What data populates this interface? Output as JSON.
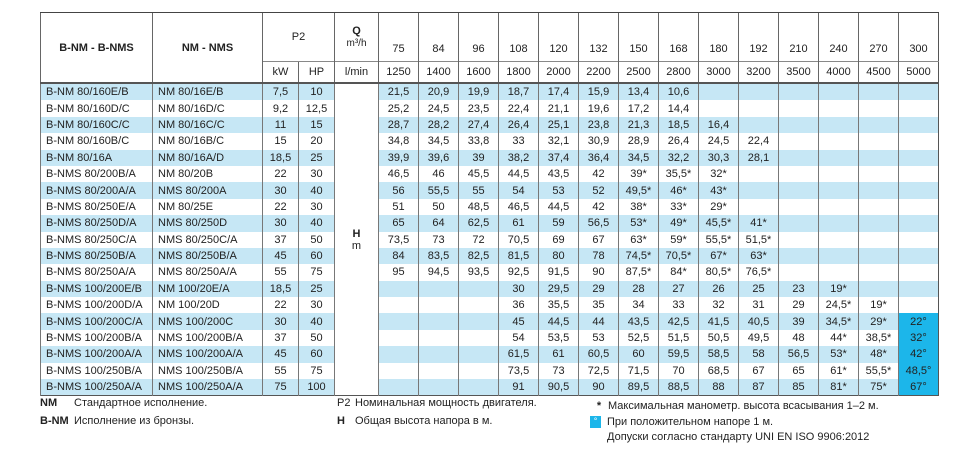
{
  "header": {
    "col_bnm": "B-NM - B-NMS",
    "col_nm": "NM - NMS",
    "p2": "P2",
    "kw": "kW",
    "hp": "HP",
    "q": "Q",
    "q_unit_m3h": "m³/h",
    "q_unit_lmin": "l/min",
    "h": "H",
    "h_unit": "m",
    "q_m3h": [
      "75",
      "84",
      "96",
      "108",
      "120",
      "132",
      "150",
      "168",
      "180",
      "192",
      "210",
      "240",
      "270",
      "300"
    ],
    "q_lmin": [
      "1250",
      "1400",
      "1600",
      "1800",
      "2000",
      "2200",
      "2500",
      "2800",
      "3000",
      "3200",
      "3500",
      "4000",
      "4500",
      "5000"
    ]
  },
  "rows": [
    {
      "bnm": "B-NM 80/160E/B",
      "nm": "NM 80/16E/B",
      "kw": "7,5",
      "hp": "10",
      "h": [
        "21,5",
        "20,9",
        "19,9",
        "18,7",
        "17,4",
        "15,9",
        "13,4",
        "10,6",
        "",
        "",
        "",
        "",
        "",
        ""
      ]
    },
    {
      "bnm": "B-NM 80/160D/C",
      "nm": "NM 80/16D/C",
      "kw": "9,2",
      "hp": "12,5",
      "h": [
        "25,2",
        "24,5",
        "23,5",
        "22,4",
        "21,1",
        "19,6",
        "17,2",
        "14,4",
        "",
        "",
        "",
        "",
        "",
        ""
      ]
    },
    {
      "bnm": "B-NM 80/160C/C",
      "nm": "NM 80/16C/C",
      "kw": "11",
      "hp": "15",
      "h": [
        "28,7",
        "28,2",
        "27,4",
        "26,4",
        "25,1",
        "23,8",
        "21,3",
        "18,5",
        "16,4",
        "",
        "",
        "",
        "",
        ""
      ]
    },
    {
      "bnm": "B-NM 80/160B/C",
      "nm": "NM 80/16B/C",
      "kw": "15",
      "hp": "20",
      "h": [
        "34,8",
        "34,5",
        "33,8",
        "33",
        "32,1",
        "30,9",
        "28,9",
        "26,4",
        "24,5",
        "22,4",
        "",
        "",
        "",
        ""
      ]
    },
    {
      "bnm": "B-NM 80/16A",
      "nm": "NM 80/16A/D",
      "kw": "18,5",
      "hp": "25",
      "h": [
        "39,9",
        "39,6",
        "39",
        "38,2",
        "37,4",
        "36,4",
        "34,5",
        "32,2",
        "30,3",
        "28,1",
        "",
        "",
        "",
        ""
      ]
    },
    {
      "bnm": "B-NMS 80/200B/A",
      "nm": "NM 80/20B",
      "kw": "22",
      "hp": "30",
      "h": [
        "46,5",
        "46",
        "45,5",
        "44,5",
        "43,5",
        "42",
        "39*",
        "35,5*",
        "32*",
        "",
        "",
        "",
        "",
        ""
      ]
    },
    {
      "bnm": "B-NMS 80/200A/A",
      "nm": "NMS 80/200A",
      "kw": "30",
      "hp": "40",
      "h": [
        "56",
        "55,5",
        "55",
        "54",
        "53",
        "52",
        "49,5*",
        "46*",
        "43*",
        "",
        "",
        "",
        "",
        ""
      ]
    },
    {
      "bnm": "B-NMS 80/250E/A",
      "nm": "NM 80/25E",
      "kw": "22",
      "hp": "30",
      "h": [
        "51",
        "50",
        "48,5",
        "46,5",
        "44,5",
        "42",
        "38*",
        "33*",
        "29*",
        "",
        "",
        "",
        "",
        ""
      ]
    },
    {
      "bnm": "B-NMS 80/250D/A",
      "nm": "NMS 80/250D",
      "kw": "30",
      "hp": "40",
      "h": [
        "65",
        "64",
        "62,5",
        "61",
        "59",
        "56,5",
        "53*",
        "49*",
        "45,5*",
        "41*",
        "",
        "",
        "",
        ""
      ]
    },
    {
      "bnm": "B-NMS 80/250C/A",
      "nm": "NMS 80/250C/A",
      "kw": "37",
      "hp": "50",
      "h": [
        "73,5",
        "73",
        "72",
        "70,5",
        "69",
        "67",
        "63*",
        "59*",
        "55,5*",
        "51,5*",
        "",
        "",
        "",
        ""
      ]
    },
    {
      "bnm": "B-NMS 80/250B/A",
      "nm": "NMS 80/250B/A",
      "kw": "45",
      "hp": "60",
      "h": [
        "84",
        "83,5",
        "82,5",
        "81,5",
        "80",
        "78",
        "74,5*",
        "70,5*",
        "67*",
        "63*",
        "",
        "",
        "",
        ""
      ]
    },
    {
      "bnm": "B-NMS 80/250A/A",
      "nm": "NMS 80/250A/A",
      "kw": "55",
      "hp": "75",
      "h": [
        "95",
        "94,5",
        "93,5",
        "92,5",
        "91,5",
        "90",
        "87,5*",
        "84*",
        "80,5*",
        "76,5*",
        "",
        "",
        "",
        ""
      ]
    },
    {
      "bnm": "B-NMS 100/200E/B",
      "nm": "NM 100/20E/A",
      "kw": "18,5",
      "hp": "25",
      "h": [
        "",
        "",
        "",
        "30",
        "29,5",
        "29",
        "28",
        "27",
        "26",
        "25",
        "23",
        "19*",
        "",
        ""
      ]
    },
    {
      "bnm": "B-NMS 100/200D/A",
      "nm": "NM 100/20D",
      "kw": "22",
      "hp": "30",
      "h": [
        "",
        "",
        "",
        "36",
        "35,5",
        "35",
        "34",
        "33",
        "32",
        "31",
        "29",
        "24,5*",
        "19*",
        ""
      ]
    },
    {
      "bnm": "B-NMS 100/200C/A",
      "nm": "NMS 100/200C",
      "kw": "30",
      "hp": "40",
      "h": [
        "",
        "",
        "",
        "45",
        "44,5",
        "44",
        "43,5",
        "42,5",
        "41,5",
        "40,5",
        "39",
        "34,5*",
        "29*",
        "22°"
      ]
    },
    {
      "bnm": "B-NMS 100/200B/A",
      "nm": "NMS 100/200B/A",
      "kw": "37",
      "hp": "50",
      "h": [
        "",
        "",
        "",
        "54",
        "53,5",
        "53",
        "52,5",
        "51,5",
        "50,5",
        "49,5",
        "48",
        "44*",
        "38,5*",
        "32°"
      ]
    },
    {
      "bnm": "B-NMS 100/200A/A",
      "nm": "NMS 100/200A/A",
      "kw": "45",
      "hp": "60",
      "h": [
        "",
        "",
        "",
        "61,5",
        "61",
        "60,5",
        "60",
        "59,5",
        "58,5",
        "58",
        "56,5",
        "53*",
        "48*",
        "42°"
      ]
    },
    {
      "bnm": "B-NMS 100/250B/A",
      "nm": "NMS 100/250B/A",
      "kw": "55",
      "hp": "75",
      "h": [
        "",
        "",
        "",
        "73,5",
        "73",
        "72,5",
        "71,5",
        "70",
        "68,5",
        "67",
        "65",
        "61*",
        "55,5*",
        "48,5°"
      ]
    },
    {
      "bnm": "B-NMS 100/250A/A",
      "nm": "NMS 100/250A/A",
      "kw": "75",
      "hp": "100",
      "h": [
        "",
        "",
        "",
        "91",
        "90,5",
        "90",
        "89,5",
        "88,5",
        "88",
        "87",
        "85",
        "81*",
        "75*",
        "67°"
      ]
    }
  ],
  "legend": {
    "nm_key": "NM",
    "nm_text": "Стандартное исполнение.",
    "bnm_key": "B-NM",
    "bnm_text": "Исполнение из бронзы.",
    "p2_key": "P2",
    "p2_text": "Номинальная мощность двигателя.",
    "h_key": "H",
    "h_text": "Общая высота напора в м.",
    "star_key": "*",
    "star_text": "Максимальная манометр. высота всасывания 1–2 м.",
    "deg_key": "°",
    "deg_text": "При положительном напоре 1 м.",
    "tolerance_text": "Допуски согласно стандарту UNI EN ISO 9906:2012"
  },
  "colors": {
    "stripe": "#c6e7f5",
    "highlight": "#1cb6ea"
  }
}
